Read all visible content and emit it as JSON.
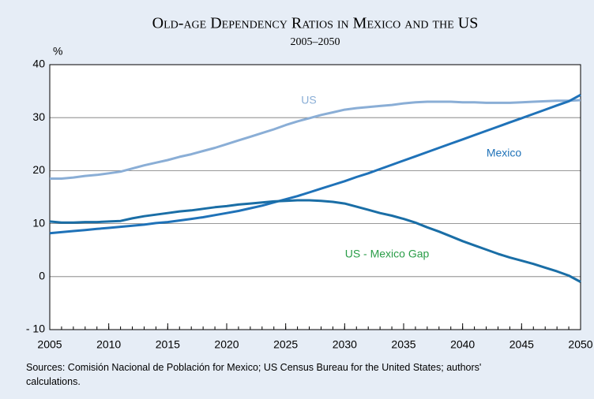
{
  "chart_data": {
    "type": "line",
    "title": "Old-age Dependency Ratios in Mexico and the US",
    "subtitle": "2005–2050",
    "y_label": "%",
    "x": [
      2005,
      2006,
      2007,
      2008,
      2009,
      2010,
      2011,
      2012,
      2013,
      2014,
      2015,
      2016,
      2017,
      2018,
      2019,
      2020,
      2021,
      2022,
      2023,
      2024,
      2025,
      2026,
      2027,
      2028,
      2029,
      2030,
      2031,
      2032,
      2033,
      2034,
      2035,
      2036,
      2037,
      2038,
      2039,
      2040,
      2041,
      2042,
      2043,
      2044,
      2045,
      2046,
      2047,
      2048,
      2049,
      2050
    ],
    "series": [
      {
        "name": "US",
        "color": "#8aaed6",
        "label_color": "#8aaed6",
        "values": [
          18.5,
          18.5,
          18.7,
          19.0,
          19.2,
          19.5,
          19.8,
          20.4,
          21.0,
          21.5,
          22.0,
          22.6,
          23.1,
          23.7,
          24.3,
          25.0,
          25.7,
          26.4,
          27.1,
          27.8,
          28.6,
          29.3,
          29.9,
          30.5,
          31.0,
          31.5,
          31.8,
          32.0,
          32.2,
          32.4,
          32.7,
          32.9,
          33.0,
          33.0,
          33.0,
          32.9,
          32.9,
          32.8,
          32.8,
          32.8,
          32.9,
          33.0,
          33.1,
          33.2,
          33.2,
          33.3
        ]
      },
      {
        "name": "Mexico",
        "color": "#1f72b8",
        "label_color": "#1f72b8",
        "values": [
          8.2,
          8.4,
          8.6,
          8.8,
          9.0,
          9.2,
          9.4,
          9.6,
          9.8,
          10.1,
          10.3,
          10.6,
          10.9,
          11.2,
          11.6,
          12.0,
          12.4,
          12.9,
          13.4,
          14.0,
          14.6,
          15.2,
          15.9,
          16.6,
          17.3,
          18.0,
          18.8,
          19.5,
          20.3,
          21.1,
          21.9,
          22.7,
          23.5,
          24.3,
          25.1,
          25.9,
          26.7,
          27.5,
          28.3,
          29.1,
          29.9,
          30.7,
          31.5,
          32.3,
          33.1,
          34.3
        ]
      },
      {
        "name": "US - Mexico Gap",
        "color": "#1a6ea6",
        "label_color": "#2a9d48",
        "values": [
          10.4,
          10.2,
          10.2,
          10.3,
          10.3,
          10.4,
          10.5,
          11.0,
          11.4,
          11.7,
          12.0,
          12.3,
          12.5,
          12.8,
          13.1,
          13.3,
          13.6,
          13.8,
          14.0,
          14.2,
          14.3,
          14.4,
          14.4,
          14.3,
          14.1,
          13.8,
          13.2,
          12.6,
          12.0,
          11.5,
          10.9,
          10.2,
          9.3,
          8.5,
          7.6,
          6.7,
          5.9,
          5.1,
          4.3,
          3.6,
          3.0,
          2.4,
          1.7,
          1.0,
          0.2,
          -1.0
        ]
      }
    ],
    "xlim": [
      2005,
      2050
    ],
    "xticks": [
      2005,
      2010,
      2015,
      2020,
      2025,
      2030,
      2035,
      2040,
      2045,
      2050
    ],
    "ylim": [
      -10,
      40
    ],
    "yticks": [
      {
        "value": -10,
        "label": "- 10"
      },
      0,
      10,
      20,
      30,
      40
    ],
    "grid": true,
    "source": "Sources: Comisión Nacional de Población for Mexico; US Census Bureau for the United States; authors' calculations."
  }
}
